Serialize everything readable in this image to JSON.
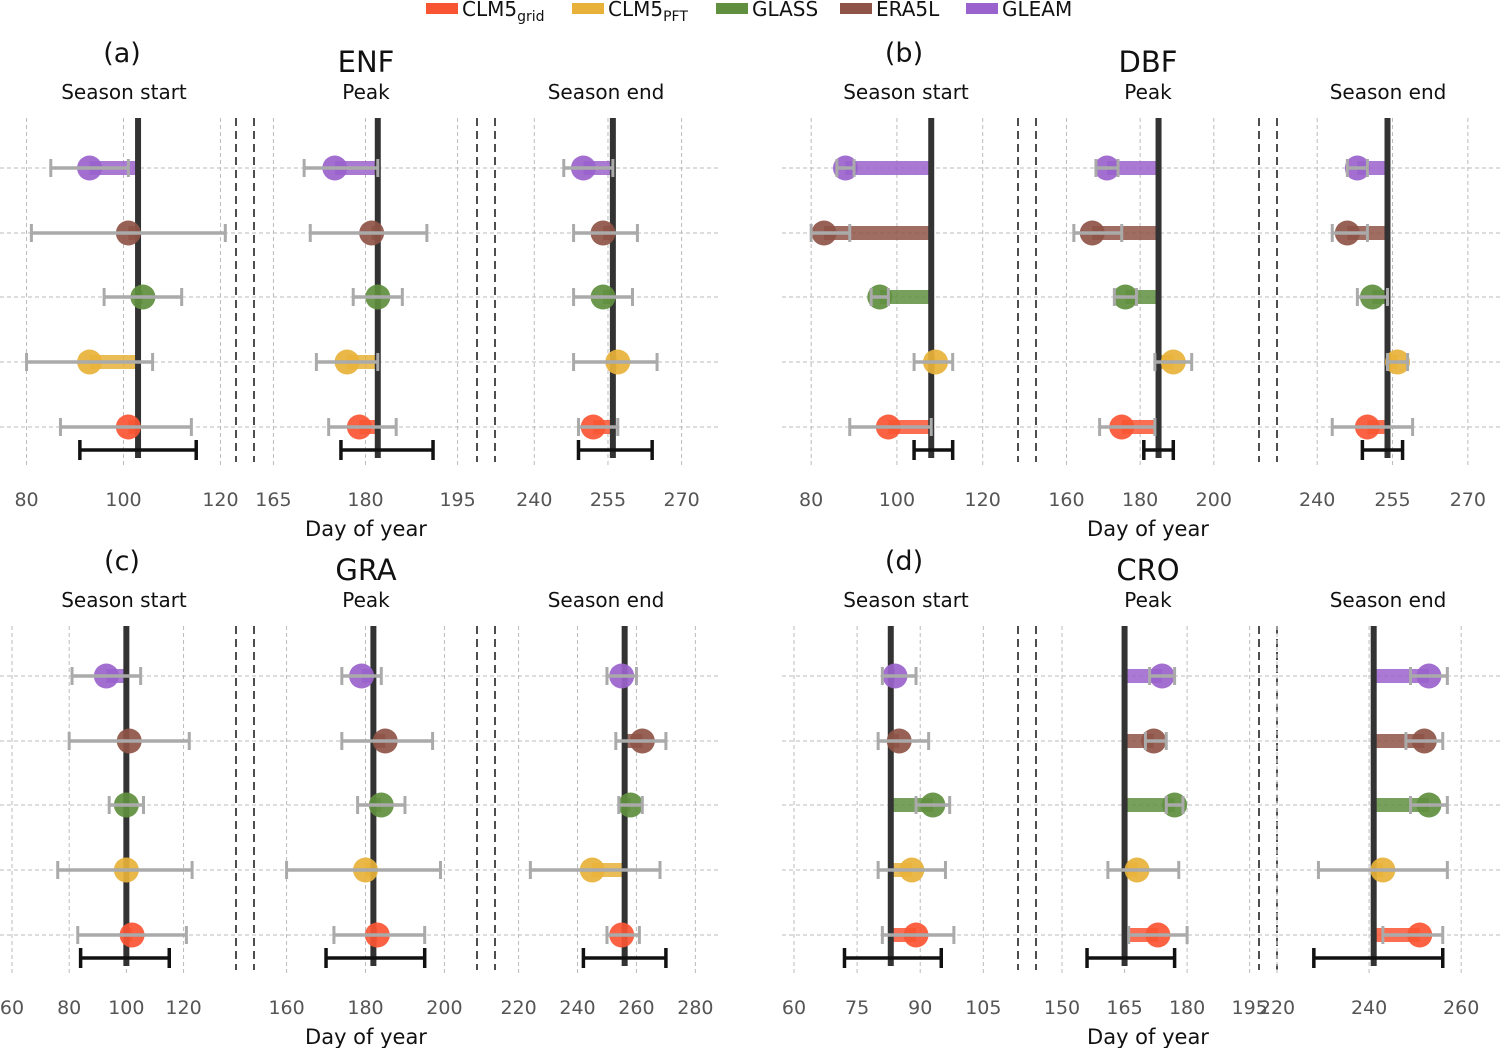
{
  "legend": [
    {
      "label": "CLM5",
      "sub": "grid",
      "color": "#fa5533"
    },
    {
      "label": "CLM5",
      "sub": "PFT",
      "color": "#e8b23a"
    },
    {
      "label": "GLASS",
      "sub": "",
      "color": "#5f8f3f"
    },
    {
      "label": "ERA5L",
      "sub": "",
      "color": "#8e5447"
    },
    {
      "label": "GLEAM",
      "sub": "",
      "color": "#9a62cc"
    }
  ],
  "colors": {
    "grid_line": "#bbbbbb",
    "reference": "#333333",
    "errorbar": "#aaaaaa"
  },
  "chart_data": [
    {
      "type": "dot-errorbar",
      "panel": "(a)",
      "title": "ENF",
      "xlabel": "Day of year",
      "series_order": [
        "CLM5_grid",
        "CLM5_PFT",
        "GLASS",
        "ERA5L",
        "GLEAM"
      ],
      "subplots": [
        {
          "name": "Season start",
          "xlim": [
            77,
            123
          ],
          "ticks": [
            80,
            100,
            120
          ],
          "grid": [
            80,
            100,
            120
          ],
          "reference": {
            "value": 103,
            "low": 91,
            "high": 115
          },
          "points": [
            {
              "value": 101,
              "low": 87,
              "high": 114
            },
            {
              "value": 93,
              "low": 80,
              "high": 106
            },
            {
              "value": 104,
              "low": 96,
              "high": 112
            },
            {
              "value": 101,
              "low": 81,
              "high": 121
            },
            {
              "value": 93,
              "low": 85,
              "high": 101
            }
          ]
        },
        {
          "name": "Peak",
          "xlim": [
            162,
            198
          ],
          "ticks": [
            165,
            180,
            195
          ],
          "grid": [
            165,
            180,
            195
          ],
          "reference": {
            "value": 182,
            "low": 176,
            "high": 191
          },
          "points": [
            {
              "value": 179,
              "low": 174,
              "high": 185
            },
            {
              "value": 177,
              "low": 172,
              "high": 182
            },
            {
              "value": 182,
              "low": 178,
              "high": 186
            },
            {
              "value": 181,
              "low": 171,
              "high": 190
            },
            {
              "value": 175,
              "low": 170,
              "high": 182
            }
          ]
        },
        {
          "name": "Season end",
          "xlim": [
            232,
            277
          ],
          "ticks": [
            240,
            255,
            270
          ],
          "grid": [
            240,
            255,
            270
          ],
          "reference": {
            "value": 256,
            "low": 249,
            "high": 264
          },
          "points": [
            {
              "value": 252,
              "low": 249,
              "high": 257
            },
            {
              "value": 257,
              "low": 248,
              "high": 265
            },
            {
              "value": 254,
              "low": 248,
              "high": 260
            },
            {
              "value": 254,
              "low": 248,
              "high": 261
            },
            {
              "value": 250,
              "low": 246,
              "high": 256
            }
          ]
        }
      ]
    },
    {
      "type": "dot-errorbar",
      "panel": "(b)",
      "title": "DBF",
      "xlabel": "Day of year",
      "series_order": [
        "CLM5_grid",
        "CLM5_PFT",
        "GLASS",
        "ERA5L",
        "GLEAM"
      ],
      "subplots": [
        {
          "name": "Season start",
          "xlim": [
            76,
            128
          ],
          "ticks": [
            80,
            100,
            120
          ],
          "grid": [
            80,
            100,
            120
          ],
          "reference": {
            "value": 108,
            "low": 104,
            "high": 113
          },
          "points": [
            {
              "value": 98,
              "low": 89,
              "high": 108
            },
            {
              "value": 109,
              "low": 104,
              "high": 113
            },
            {
              "value": 96,
              "low": 94,
              "high": 98
            },
            {
              "value": 83,
              "low": 80,
              "high": 89
            },
            {
              "value": 88,
              "low": 86,
              "high": 90
            }
          ]
        },
        {
          "name": "Peak",
          "xlim": [
            152,
            212
          ],
          "ticks": [
            160,
            180,
            200
          ],
          "grid": [
            160,
            180,
            200
          ],
          "reference": {
            "value": 185,
            "low": 181,
            "high": 189
          },
          "points": [
            {
              "value": 175,
              "low": 169,
              "high": 184
            },
            {
              "value": 189,
              "low": 184,
              "high": 194
            },
            {
              "value": 176,
              "low": 173,
              "high": 179
            },
            {
              "value": 167,
              "low": 162,
              "high": 175
            },
            {
              "value": 171,
              "low": 168,
              "high": 174
            }
          ]
        },
        {
          "name": "Season end",
          "xlim": [
            232,
            276
          ],
          "ticks": [
            240,
            255,
            270
          ],
          "grid": [
            240,
            255,
            270
          ],
          "reference": {
            "value": 254,
            "low": 249,
            "high": 257
          },
          "points": [
            {
              "value": 250,
              "low": 243,
              "high": 259
            },
            {
              "value": 256,
              "low": 254,
              "high": 258
            },
            {
              "value": 251,
              "low": 248,
              "high": 254
            },
            {
              "value": 246,
              "low": 243,
              "high": 250
            },
            {
              "value": 248,
              "low": 246,
              "high": 250
            }
          ]
        }
      ]
    },
    {
      "type": "dot-errorbar",
      "panel": "(c)",
      "title": "GRA",
      "xlabel": "Day of year",
      "series_order": [
        "CLM5_grid",
        "CLM5_PFT",
        "GLASS",
        "ERA5L",
        "GLEAM"
      ],
      "subplots": [
        {
          "name": "Season start",
          "xlim": [
            60,
            138
          ],
          "ticks": [
            60,
            80,
            100,
            120
          ],
          "grid": [
            60,
            80,
            100,
            120
          ],
          "reference": {
            "value": 100,
            "low": 84,
            "high": 115
          },
          "points": [
            {
              "value": 102,
              "low": 83,
              "high": 121
            },
            {
              "value": 100,
              "low": 76,
              "high": 123
            },
            {
              "value": 100,
              "low": 94,
              "high": 106
            },
            {
              "value": 101,
              "low": 80,
              "high": 122
            },
            {
              "value": 93,
              "low": 81,
              "high": 105
            }
          ]
        },
        {
          "name": "Peak",
          "xlim": [
            152,
            208
          ],
          "ticks": [
            160,
            180,
            200
          ],
          "grid": [
            160,
            180,
            200
          ],
          "reference": {
            "value": 182,
            "low": 170,
            "high": 195
          },
          "points": [
            {
              "value": 183,
              "low": 172,
              "high": 195
            },
            {
              "value": 180,
              "low": 160,
              "high": 199
            },
            {
              "value": 184,
              "low": 178,
              "high": 190
            },
            {
              "value": 185,
              "low": 174,
              "high": 197
            },
            {
              "value": 179,
              "low": 174,
              "high": 184
            }
          ]
        },
        {
          "name": "Season end",
          "xlim": [
            212,
            287
          ],
          "ticks": [
            220,
            240,
            260,
            280
          ],
          "grid": [
            220,
            240,
            260,
            280
          ],
          "reference": {
            "value": 256,
            "low": 242,
            "high": 270
          },
          "points": [
            {
              "value": 255,
              "low": 250,
              "high": 261
            },
            {
              "value": 245,
              "low": 224,
              "high": 268
            },
            {
              "value": 258,
              "low": 254,
              "high": 262
            },
            {
              "value": 262,
              "low": 253,
              "high": 270
            },
            {
              "value": 255,
              "low": 250,
              "high": 260
            }
          ]
        }
      ]
    },
    {
      "type": "dot-errorbar",
      "panel": "(d)",
      "title": "CRO",
      "xlabel": "Day of year",
      "series_order": [
        "CLM5_grid",
        "CLM5_PFT",
        "GLASS",
        "ERA5L",
        "GLEAM"
      ],
      "subplots": [
        {
          "name": "Season start",
          "xlim": [
            60,
            113
          ],
          "ticks": [
            60,
            75,
            90,
            105
          ],
          "grid": [
            60,
            75,
            90,
            105
          ],
          "reference": {
            "value": 83,
            "low": 72,
            "high": 95
          },
          "points": [
            {
              "value": 89,
              "low": 81,
              "high": 98
            },
            {
              "value": 88,
              "low": 80,
              "high": 96
            },
            {
              "value": 93,
              "low": 89,
              "high": 97
            },
            {
              "value": 85,
              "low": 80,
              "high": 92
            },
            {
              "value": 84,
              "low": 81,
              "high": 89
            }
          ]
        },
        {
          "name": "Peak",
          "xlim": [
            144,
            197
          ],
          "ticks": [
            150,
            165,
            180,
            195
          ],
          "grid": [
            150,
            165,
            180,
            195
          ],
          "reference": {
            "value": 165,
            "low": 156,
            "high": 177
          },
          "points": [
            {
              "value": 173,
              "low": 166,
              "high": 180
            },
            {
              "value": 168,
              "low": 161,
              "high": 178
            },
            {
              "value": 177,
              "low": 175,
              "high": 179
            },
            {
              "value": 172,
              "low": 170,
              "high": 175
            },
            {
              "value": 174,
              "low": 171,
              "high": 177
            }
          ]
        },
        {
          "name": "Season end",
          "xlim": [
            220,
            268
          ],
          "ticks": [
            220,
            240,
            260
          ],
          "grid": [
            220,
            240,
            260
          ],
          "reference": {
            "value": 241,
            "low": 228,
            "high": 256
          },
          "points": [
            {
              "value": 251,
              "low": 243,
              "high": 256
            },
            {
              "value": 243,
              "low": 229,
              "high": 257
            },
            {
              "value": 253,
              "low": 249,
              "high": 257
            },
            {
              "value": 252,
              "low": 248,
              "high": 256
            },
            {
              "value": 253,
              "low": 249,
              "high": 257
            }
          ]
        }
      ]
    }
  ]
}
